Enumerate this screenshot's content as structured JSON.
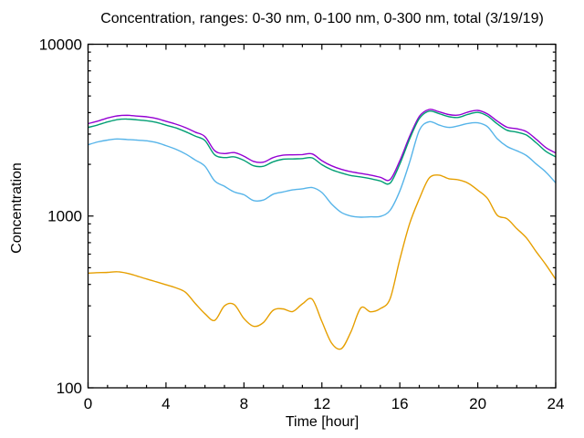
{
  "chart_data": {
    "type": "line",
    "title": "Concentration, ranges: 0-30 nm, 0-100 nm, 0-300 nm, total (3/19/19)",
    "xlabel": "Time [hour]",
    "ylabel": "Concentration",
    "x_scale": "linear",
    "y_scale": "log",
    "xlim": [
      0,
      24
    ],
    "ylim": [
      100,
      10000
    ],
    "x_major_ticks": [
      0,
      4,
      8,
      12,
      16,
      20,
      24
    ],
    "x_minor_step": 1,
    "y_major_ticks": [
      100,
      1000,
      10000
    ],
    "y_minor_ticks": "2-9 per log decade",
    "grid": false,
    "legend": "none",
    "axis_color": "#000000",
    "background_color": "#ffffff",
    "x": [
      0,
      0.5,
      1,
      1.5,
      2,
      2.5,
      3,
      3.5,
      4,
      4.5,
      5,
      5.5,
      6,
      6.5,
      7,
      7.5,
      8,
      8.5,
      9,
      9.5,
      10,
      10.5,
      11,
      11.5,
      12,
      12.5,
      13,
      13.5,
      14,
      14.5,
      15,
      15.5,
      16,
      16.5,
      17,
      17.5,
      18,
      18.5,
      19,
      19.5,
      20,
      20.5,
      21,
      21.5,
      22,
      22.5,
      23,
      23.5,
      24
    ],
    "series": [
      {
        "name": "total",
        "color": "#9400D3",
        "values": [
          3450,
          3570,
          3720,
          3830,
          3860,
          3820,
          3780,
          3700,
          3560,
          3430,
          3270,
          3080,
          2900,
          2400,
          2310,
          2340,
          2230,
          2080,
          2060,
          2190,
          2260,
          2270,
          2280,
          2300,
          2100,
          1960,
          1870,
          1810,
          1770,
          1730,
          1680,
          1630,
          2100,
          2900,
          3800,
          4170,
          4050,
          3900,
          3870,
          4030,
          4120,
          3930,
          3570,
          3290,
          3220,
          3100,
          2800,
          2500,
          2330
        ]
      },
      {
        "name": "0-300 nm",
        "color": "#009E73",
        "values": [
          3280,
          3390,
          3530,
          3640,
          3670,
          3630,
          3590,
          3510,
          3380,
          3260,
          3100,
          2920,
          2750,
          2270,
          2190,
          2210,
          2110,
          1960,
          1950,
          2070,
          2140,
          2150,
          2160,
          2180,
          1990,
          1860,
          1780,
          1720,
          1690,
          1650,
          1600,
          1555,
          2010,
          2800,
          3690,
          4080,
          3950,
          3790,
          3750,
          3910,
          4010,
          3820,
          3440,
          3160,
          3080,
          2960,
          2670,
          2380,
          2210
        ]
      },
      {
        "name": "0-100 nm",
        "color": "#56B4E9",
        "values": [
          2600,
          2700,
          2770,
          2810,
          2790,
          2770,
          2740,
          2680,
          2570,
          2450,
          2300,
          2120,
          1950,
          1600,
          1490,
          1380,
          1330,
          1230,
          1240,
          1340,
          1380,
          1420,
          1440,
          1465,
          1370,
          1175,
          1050,
          1000,
          985,
          990,
          995,
          1080,
          1400,
          2050,
          3150,
          3540,
          3390,
          3280,
          3350,
          3460,
          3490,
          3310,
          2820,
          2540,
          2400,
          2250,
          2010,
          1800,
          1560
        ]
      },
      {
        "name": "0-30 nm",
        "color": "#E69F00",
        "values": [
          465,
          468,
          470,
          474,
          465,
          448,
          430,
          414,
          398,
          382,
          360,
          310,
          270,
          247,
          300,
          305,
          253,
          228,
          240,
          283,
          288,
          278,
          308,
          328,
          243,
          182,
          169,
          213,
          292,
          277,
          289,
          330,
          560,
          900,
          1260,
          1660,
          1730,
          1650,
          1625,
          1555,
          1415,
          1265,
          1010,
          965,
          845,
          745,
          620,
          520,
          428
        ]
      }
    ]
  }
}
